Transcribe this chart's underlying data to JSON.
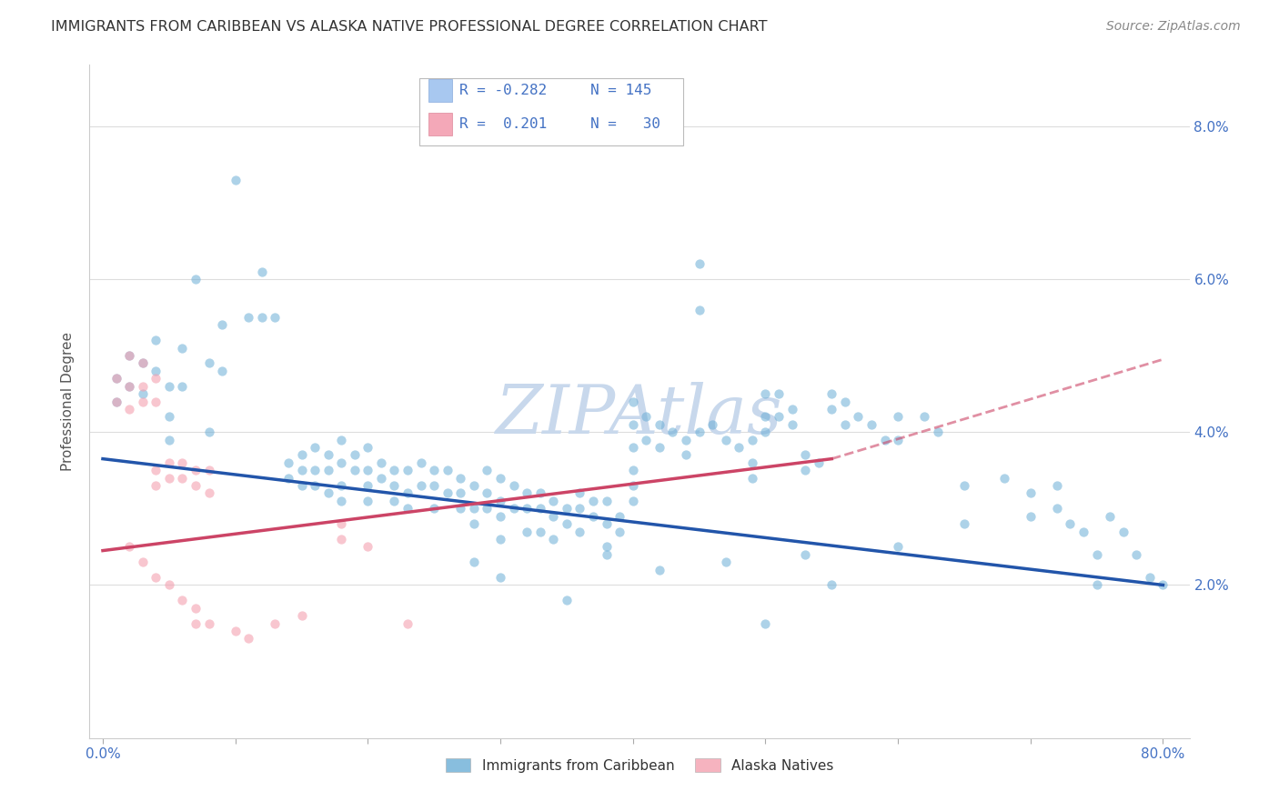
{
  "title": "IMMIGRANTS FROM CARIBBEAN VS ALASKA NATIVE PROFESSIONAL DEGREE CORRELATION CHART",
  "source": "Source: ZipAtlas.com",
  "ylabel": "Professional Degree",
  "x_tick_labels_visible": [
    "0.0%",
    "80.0%"
  ],
  "x_tick_positions": [
    0,
    10,
    20,
    30,
    40,
    50,
    60,
    70,
    80
  ],
  "y_tick_labels": [
    "2.0%",
    "4.0%",
    "6.0%",
    "8.0%"
  ],
  "y_tick_positions": [
    2,
    4,
    6,
    8
  ],
  "xlim": [
    -1,
    82
  ],
  "ylim": [
    0,
    8.8
  ],
  "legend_labels": [
    "Immigrants from Caribbean",
    "Alaska Natives"
  ],
  "blue_line": {
    "x0": 0,
    "y0": 3.65,
    "x1": 80,
    "y1": 2.0
  },
  "pink_line": {
    "x0": 0,
    "y0": 2.45,
    "x1": 55,
    "y1": 3.65
  },
  "pink_dashed_line": {
    "x0": 55,
    "y0": 3.65,
    "x1": 80,
    "y1": 4.95
  },
  "blue_scatter": [
    [
      1,
      4.7
    ],
    [
      1,
      4.4
    ],
    [
      2,
      5.0
    ],
    [
      2,
      4.6
    ],
    [
      3,
      4.9
    ],
    [
      3,
      4.5
    ],
    [
      4,
      5.2
    ],
    [
      4,
      4.8
    ],
    [
      5,
      4.6
    ],
    [
      5,
      4.2
    ],
    [
      5,
      3.9
    ],
    [
      6,
      5.1
    ],
    [
      6,
      4.6
    ],
    [
      7,
      6.0
    ],
    [
      8,
      4.9
    ],
    [
      8,
      4.0
    ],
    [
      9,
      5.4
    ],
    [
      9,
      4.8
    ],
    [
      10,
      7.3
    ],
    [
      11,
      5.5
    ],
    [
      12,
      5.5
    ],
    [
      12,
      6.1
    ],
    [
      13,
      5.5
    ],
    [
      14,
      3.6
    ],
    [
      14,
      3.4
    ],
    [
      15,
      3.7
    ],
    [
      15,
      3.5
    ],
    [
      15,
      3.3
    ],
    [
      16,
      3.8
    ],
    [
      16,
      3.5
    ],
    [
      16,
      3.3
    ],
    [
      17,
      3.7
    ],
    [
      17,
      3.5
    ],
    [
      17,
      3.2
    ],
    [
      18,
      3.9
    ],
    [
      18,
      3.6
    ],
    [
      18,
      3.3
    ],
    [
      18,
      3.1
    ],
    [
      19,
      3.7
    ],
    [
      19,
      3.5
    ],
    [
      20,
      3.8
    ],
    [
      20,
      3.5
    ],
    [
      20,
      3.3
    ],
    [
      20,
      3.1
    ],
    [
      21,
      3.6
    ],
    [
      21,
      3.4
    ],
    [
      22,
      3.5
    ],
    [
      22,
      3.3
    ],
    [
      22,
      3.1
    ],
    [
      23,
      3.5
    ],
    [
      23,
      3.2
    ],
    [
      23,
      3.0
    ],
    [
      24,
      3.6
    ],
    [
      24,
      3.3
    ],
    [
      25,
      3.5
    ],
    [
      25,
      3.3
    ],
    [
      25,
      3.0
    ],
    [
      26,
      3.5
    ],
    [
      26,
      3.2
    ],
    [
      27,
      3.4
    ],
    [
      27,
      3.2
    ],
    [
      27,
      3.0
    ],
    [
      28,
      3.3
    ],
    [
      28,
      3.0
    ],
    [
      28,
      2.8
    ],
    [
      29,
      3.5
    ],
    [
      29,
      3.2
    ],
    [
      29,
      3.0
    ],
    [
      30,
      3.4
    ],
    [
      30,
      3.1
    ],
    [
      30,
      2.9
    ],
    [
      30,
      2.6
    ],
    [
      31,
      3.3
    ],
    [
      31,
      3.0
    ],
    [
      32,
      3.2
    ],
    [
      32,
      3.0
    ],
    [
      32,
      2.7
    ],
    [
      33,
      3.2
    ],
    [
      33,
      3.0
    ],
    [
      33,
      2.7
    ],
    [
      34,
      3.1
    ],
    [
      34,
      2.9
    ],
    [
      34,
      2.6
    ],
    [
      35,
      3.0
    ],
    [
      35,
      2.8
    ],
    [
      36,
      3.2
    ],
    [
      36,
      3.0
    ],
    [
      36,
      2.7
    ],
    [
      37,
      3.1
    ],
    [
      37,
      2.9
    ],
    [
      38,
      3.1
    ],
    [
      38,
      2.8
    ],
    [
      38,
      2.5
    ],
    [
      39,
      2.9
    ],
    [
      39,
      2.7
    ],
    [
      40,
      4.4
    ],
    [
      40,
      4.1
    ],
    [
      40,
      3.8
    ],
    [
      40,
      3.5
    ],
    [
      40,
      3.3
    ],
    [
      40,
      3.1
    ],
    [
      41,
      4.2
    ],
    [
      41,
      3.9
    ],
    [
      42,
      4.1
    ],
    [
      42,
      3.8
    ],
    [
      43,
      4.0
    ],
    [
      44,
      3.9
    ],
    [
      44,
      3.7
    ],
    [
      45,
      6.2
    ],
    [
      45,
      5.6
    ],
    [
      45,
      4.0
    ],
    [
      46,
      4.1
    ],
    [
      47,
      3.9
    ],
    [
      48,
      3.8
    ],
    [
      49,
      3.9
    ],
    [
      49,
      3.6
    ],
    [
      49,
      3.4
    ],
    [
      50,
      4.5
    ],
    [
      50,
      4.2
    ],
    [
      50,
      4.0
    ],
    [
      51,
      4.5
    ],
    [
      51,
      4.2
    ],
    [
      52,
      4.3
    ],
    [
      52,
      4.1
    ],
    [
      53,
      3.7
    ],
    [
      53,
      3.5
    ],
    [
      53,
      2.4
    ],
    [
      54,
      3.6
    ],
    [
      55,
      4.5
    ],
    [
      55,
      4.3
    ],
    [
      56,
      4.4
    ],
    [
      56,
      4.1
    ],
    [
      57,
      4.2
    ],
    [
      58,
      4.1
    ],
    [
      59,
      3.9
    ],
    [
      60,
      4.2
    ],
    [
      60,
      3.9
    ],
    [
      62,
      4.2
    ],
    [
      63,
      4.0
    ],
    [
      65,
      3.3
    ],
    [
      65,
      2.8
    ],
    [
      68,
      3.4
    ],
    [
      70,
      3.2
    ],
    [
      70,
      2.9
    ],
    [
      72,
      3.3
    ],
    [
      72,
      3.0
    ],
    [
      73,
      2.8
    ],
    [
      74,
      2.7
    ],
    [
      75,
      2.4
    ],
    [
      75,
      2.0
    ],
    [
      76,
      2.9
    ],
    [
      77,
      2.7
    ],
    [
      78,
      2.4
    ],
    [
      79,
      2.1
    ],
    [
      80,
      2.0
    ],
    [
      28,
      2.3
    ],
    [
      30,
      2.1
    ],
    [
      35,
      1.8
    ],
    [
      38,
      2.4
    ],
    [
      42,
      2.2
    ],
    [
      47,
      2.3
    ],
    [
      50,
      1.5
    ],
    [
      55,
      2.0
    ],
    [
      60,
      2.5
    ]
  ],
  "pink_scatter": [
    [
      1,
      4.7
    ],
    [
      1,
      4.4
    ],
    [
      2,
      5.0
    ],
    [
      2,
      4.6
    ],
    [
      2,
      4.3
    ],
    [
      3,
      4.9
    ],
    [
      3,
      4.6
    ],
    [
      3,
      4.4
    ],
    [
      4,
      4.7
    ],
    [
      4,
      4.4
    ],
    [
      4,
      3.5
    ],
    [
      4,
      3.3
    ],
    [
      5,
      3.6
    ],
    [
      5,
      3.4
    ],
    [
      6,
      3.6
    ],
    [
      6,
      3.4
    ],
    [
      7,
      3.5
    ],
    [
      7,
      3.3
    ],
    [
      8,
      3.5
    ],
    [
      8,
      3.2
    ],
    [
      2,
      2.5
    ],
    [
      3,
      2.3
    ],
    [
      4,
      2.1
    ],
    [
      5,
      2.0
    ],
    [
      6,
      1.8
    ],
    [
      7,
      1.7
    ],
    [
      7,
      1.5
    ],
    [
      8,
      1.5
    ],
    [
      10,
      1.4
    ],
    [
      11,
      1.3
    ],
    [
      13,
      1.5
    ],
    [
      15,
      1.6
    ],
    [
      18,
      2.8
    ],
    [
      18,
      2.6
    ],
    [
      20,
      2.5
    ],
    [
      23,
      1.5
    ]
  ],
  "dot_size": 55,
  "blue_color": "#6baed6",
  "pink_color": "#f4a0b0",
  "blue_alpha": 0.55,
  "pink_alpha": 0.6,
  "grid_color": "#dddddd",
  "title_color": "#333333",
  "axis_label_color": "#4472c4",
  "background_color": "#ffffff",
  "watermark": "ZIPAtlas",
  "watermark_color": "#c8d8ec"
}
